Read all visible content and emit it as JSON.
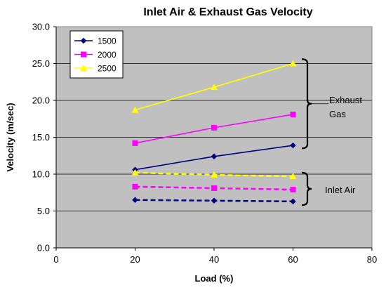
{
  "chart_data": {
    "type": "line",
    "title": "Inlet Air & Exhaust Gas Velocity",
    "xlabel": "Load (%)",
    "ylabel": "Velocity (m/sec)",
    "xlim": [
      0,
      80
    ],
    "ylim": [
      0,
      30
    ],
    "xticks": [
      "0",
      "20",
      "40",
      "60",
      "80"
    ],
    "yticks": [
      "0.0",
      "5.0",
      "10.0",
      "15.0",
      "20.0",
      "25.0",
      "30.0"
    ],
    "grid": true,
    "legend": {
      "placement": "top-left",
      "entries": [
        "1500",
        "2000",
        "2500"
      ]
    },
    "series": [
      {
        "name": "1500",
        "group": "exhaust",
        "color": "#000080",
        "marker": "diamond",
        "dashed": false,
        "x": [
          20,
          40,
          60
        ],
        "y": [
          10.6,
          12.4,
          13.9
        ]
      },
      {
        "name": "2000",
        "group": "exhaust",
        "color": "#ff00ff",
        "marker": "square",
        "dashed": false,
        "x": [
          20,
          40,
          60
        ],
        "y": [
          14.2,
          16.3,
          18.1
        ]
      },
      {
        "name": "2500",
        "group": "exhaust",
        "color": "#ffff00",
        "marker": "triangle",
        "dashed": false,
        "x": [
          20,
          40,
          60
        ],
        "y": [
          18.7,
          21.8,
          25.0
        ]
      },
      {
        "name": "1500",
        "group": "inlet",
        "color": "#000080",
        "marker": "diamond",
        "dashed": true,
        "x": [
          20,
          40,
          60
        ],
        "y": [
          6.5,
          6.4,
          6.3
        ]
      },
      {
        "name": "2000",
        "group": "inlet",
        "color": "#ff00ff",
        "marker": "square",
        "dashed": true,
        "x": [
          20,
          40,
          60
        ],
        "y": [
          8.3,
          8.1,
          7.9
        ]
      },
      {
        "name": "2500",
        "group": "inlet",
        "color": "#ffff00",
        "marker": "triangle",
        "dashed": true,
        "x": [
          20,
          40,
          60
        ],
        "y": [
          10.2,
          9.9,
          9.7
        ]
      }
    ],
    "annotations": [
      {
        "text_lines": [
          "Exhaust",
          "Gas"
        ],
        "y_range": [
          13.5,
          25.6
        ]
      },
      {
        "text_lines": [
          "Inlet Air"
        ],
        "y_range": [
          5.8,
          10.2
        ]
      }
    ]
  }
}
